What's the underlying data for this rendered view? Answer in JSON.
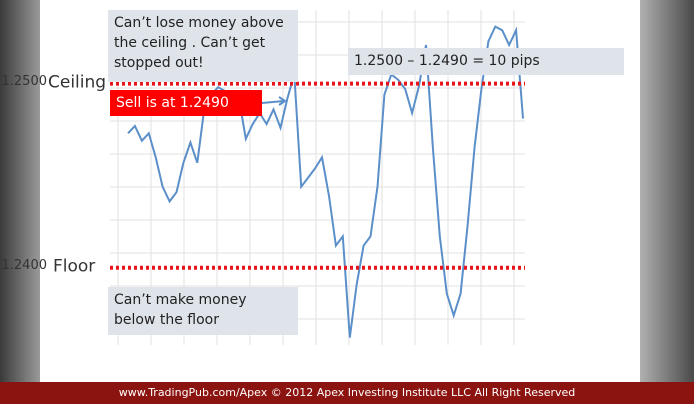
{
  "chart_data": {
    "type": "line",
    "series": [
      {
        "color": "#5b8fc9",
        "values": [
          1.2473,
          1.2477,
          1.2469,
          1.2473,
          1.246,
          1.2444,
          1.2436,
          1.2441,
          1.2457,
          1.2468,
          1.2457,
          1.2486,
          1.2494,
          1.2498,
          1.2496,
          1.2496,
          1.2492,
          1.247,
          1.2478,
          1.2484,
          1.2478,
          1.2486,
          1.2476,
          1.2492,
          1.2505,
          1.2444,
          1.2449,
          1.2454,
          1.246,
          1.2439,
          1.2412,
          1.2417,
          1.2362,
          1.2391,
          1.2412,
          1.2417,
          1.2444,
          1.2494,
          1.2505,
          1.2502,
          1.2497,
          1.2484,
          1.2499,
          1.2521,
          1.2465,
          1.2417,
          1.2386,
          1.2374,
          1.2386,
          1.2423,
          1.2465,
          1.2497,
          1.2523,
          1.2531,
          1.2529,
          1.2521,
          1.2529,
          1.2481
        ]
      }
    ],
    "ylim": [
      1.2358,
      1.254
    ],
    "yticks": [
      {
        "value": 1.25,
        "label": "1.2500"
      },
      {
        "value": 1.24,
        "label": "1.2400"
      }
    ],
    "level_labels": [
      "Ceiling",
      "Floor"
    ],
    "level_color": "#e8151b",
    "annotations": {
      "ceiling_note": [
        "Can’t lose money above",
        "the ceiling . Can’t get",
        "stopped out!"
      ],
      "sell_note": "Sell is at 1.2490",
      "pips_note": "1.2500 – 1.2490 = 10 pips",
      "floor_note": [
        "Can’t make money",
        "below the floor"
      ]
    },
    "footer": "www.TradingPub.com/Apex  ©  2012 Apex Investing Institute LLC       All Right Reserved"
  }
}
